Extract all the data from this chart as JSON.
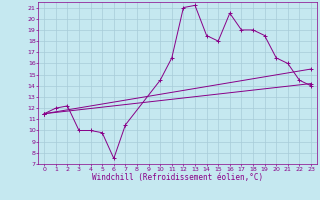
{
  "xlabel": "Windchill (Refroidissement éolien,°C)",
  "bg_color": "#c5e8f0",
  "line_color": "#880088",
  "grid_color": "#a8ccd8",
  "xlim": [
    -0.5,
    23.5
  ],
  "ylim": [
    7,
    21.5
  ],
  "xticks": [
    0,
    1,
    2,
    3,
    4,
    5,
    6,
    7,
    8,
    9,
    10,
    11,
    12,
    13,
    14,
    15,
    16,
    17,
    18,
    19,
    20,
    21,
    22,
    23
  ],
  "yticks": [
    7,
    8,
    9,
    10,
    11,
    12,
    13,
    14,
    15,
    16,
    17,
    18,
    19,
    20,
    21
  ],
  "line1_x": [
    0,
    1,
    2,
    3,
    4,
    5,
    6,
    7,
    10,
    11,
    12,
    13,
    14,
    15,
    16,
    17,
    18,
    19,
    20,
    21,
    22,
    23
  ],
  "line1_y": [
    11.5,
    12.0,
    12.2,
    10.0,
    10.0,
    9.8,
    7.5,
    10.5,
    14.5,
    16.5,
    21.0,
    21.2,
    18.5,
    18.0,
    20.5,
    19.0,
    19.0,
    18.5,
    16.5,
    16.0,
    14.5,
    14.0
  ],
  "line2_x": [
    0,
    23
  ],
  "line2_y": [
    11.5,
    14.2
  ],
  "line3_x": [
    0,
    23
  ],
  "line3_y": [
    11.5,
    15.5
  ],
  "xlabel_fontsize": 5.5,
  "tick_fontsize": 4.5,
  "line_width": 0.7,
  "marker_size": 2.5
}
